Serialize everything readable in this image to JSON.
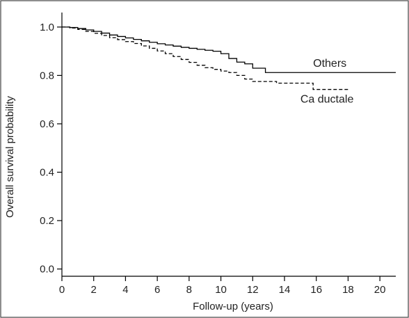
{
  "chart_data": {
    "type": "line",
    "title": "",
    "xlabel": "Follow-up (years)",
    "ylabel": "Overall survival probability",
    "xlim": [
      0,
      21
    ],
    "ylim": [
      -0.03,
      1.06
    ],
    "x_ticks": [
      0,
      2,
      4,
      6,
      8,
      10,
      12,
      14,
      16,
      18,
      20
    ],
    "x_tick_labels": [
      "0",
      "2",
      "4",
      "6",
      "8",
      "10",
      "12",
      "14",
      "16",
      "18",
      "20"
    ],
    "y_ticks": [
      0.0,
      0.2,
      0.4,
      0.6,
      0.8,
      1.0
    ],
    "y_tick_labels": [
      "0.0",
      "0.2",
      "0.4",
      "0.6",
      "0.8",
      "1.0"
    ],
    "grid": false,
    "legend": "none (series labeled directly on plot)",
    "series": [
      {
        "name": "Others",
        "line_style": "solid",
        "color": "#000000",
        "x": [
          0,
          0.5,
          1.0,
          1.5,
          2.0,
          2.5,
          3.0,
          3.5,
          4.0,
          4.5,
          5.0,
          5.5,
          6.0,
          6.5,
          7.0,
          7.5,
          8.0,
          8.5,
          9.0,
          9.5,
          10.0,
          10.5,
          11.0,
          11.5,
          12.0,
          12.5,
          12.8,
          13.5,
          14.0,
          15.0,
          16.0,
          17.0,
          18.0,
          19.0,
          20.0,
          21.0
        ],
        "y": [
          1.0,
          0.998,
          0.994,
          0.988,
          0.982,
          0.975,
          0.967,
          0.961,
          0.955,
          0.949,
          0.943,
          0.937,
          0.931,
          0.926,
          0.921,
          0.916,
          0.912,
          0.908,
          0.904,
          0.9,
          0.89,
          0.87,
          0.855,
          0.848,
          0.83,
          0.83,
          0.812,
          0.812,
          0.812,
          0.812,
          0.812,
          0.812,
          0.812,
          0.812,
          0.812,
          0.812
        ]
      },
      {
        "name": "Ca ductale",
        "line_style": "dashed",
        "color": "#000000",
        "x": [
          0,
          0.5,
          1.0,
          1.5,
          2.0,
          2.5,
          3.0,
          3.5,
          4.0,
          4.5,
          5.0,
          5.5,
          6.0,
          6.5,
          7.0,
          7.5,
          8.0,
          8.5,
          9.0,
          9.5,
          10.0,
          10.5,
          11.0,
          11.5,
          12.0,
          12.5,
          13.0,
          13.5,
          14.0,
          15.0,
          15.8,
          16.5,
          17.0,
          18.0
        ],
        "y": [
          1.0,
          0.996,
          0.99,
          0.982,
          0.974,
          0.965,
          0.956,
          0.948,
          0.94,
          0.932,
          0.922,
          0.912,
          0.901,
          0.89,
          0.878,
          0.866,
          0.854,
          0.842,
          0.832,
          0.825,
          0.818,
          0.812,
          0.8,
          0.785,
          0.775,
          0.775,
          0.775,
          0.768,
          0.768,
          0.768,
          0.742,
          0.742,
          0.742,
          0.742
        ]
      }
    ],
    "annotations": [
      {
        "text": "Others",
        "x": 15.8,
        "y": 0.835
      },
      {
        "text": "Ca ductale",
        "x": 15.0,
        "y": 0.688
      }
    ]
  }
}
